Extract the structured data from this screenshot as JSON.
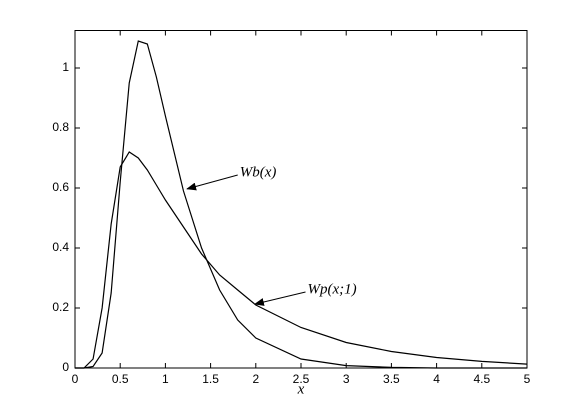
{
  "chart_data": {
    "type": "line",
    "xlabel": "x",
    "xlim": [
      0,
      5
    ],
    "xticks": [
      0,
      0.5,
      1,
      1.5,
      2,
      2.5,
      3,
      3.5,
      4,
      4.5,
      5
    ],
    "ylim": [
      0,
      1.125
    ],
    "yticks": [
      0,
      0.2,
      0.4,
      0.6,
      0.8,
      1
    ],
    "grid": false,
    "x": [
      0,
      0.1,
      0.2,
      0.3,
      0.4,
      0.5,
      0.6,
      0.7,
      0.8,
      0.9,
      1.0,
      1.2,
      1.4,
      1.6,
      1.8,
      2.0,
      2.5,
      3,
      3.5,
      4,
      4.5,
      5
    ],
    "series": [
      {
        "name": "Wb(x)",
        "color": "#000000",
        "values": [
          0,
          0,
          0.005,
          0.05,
          0.25,
          0.62,
          0.95,
          1.09,
          1.08,
          0.97,
          0.84,
          0.59,
          0.4,
          0.26,
          0.16,
          0.1,
          0.03,
          0.008,
          0.002,
          0,
          0,
          0
        ]
      },
      {
        "name": "Wp(x;1)",
        "color": "#000000",
        "values": [
          0,
          0,
          0.03,
          0.2,
          0.48,
          0.67,
          0.72,
          0.7,
          0.66,
          0.61,
          0.56,
          0.47,
          0.38,
          0.31,
          0.26,
          0.21,
          0.135,
          0.085,
          0.055,
          0.035,
          0.022,
          0.013
        ]
      }
    ],
    "annotations": [
      {
        "text": "Wb(x)",
        "xy": [
          1.24,
          0.597
        ],
        "xytext": [
          1.8,
          0.65
        ]
      },
      {
        "text": "Wp(x;1)",
        "xy": [
          1.99,
          0.213
        ],
        "xytext": [
          2.55,
          0.26
        ]
      }
    ]
  }
}
